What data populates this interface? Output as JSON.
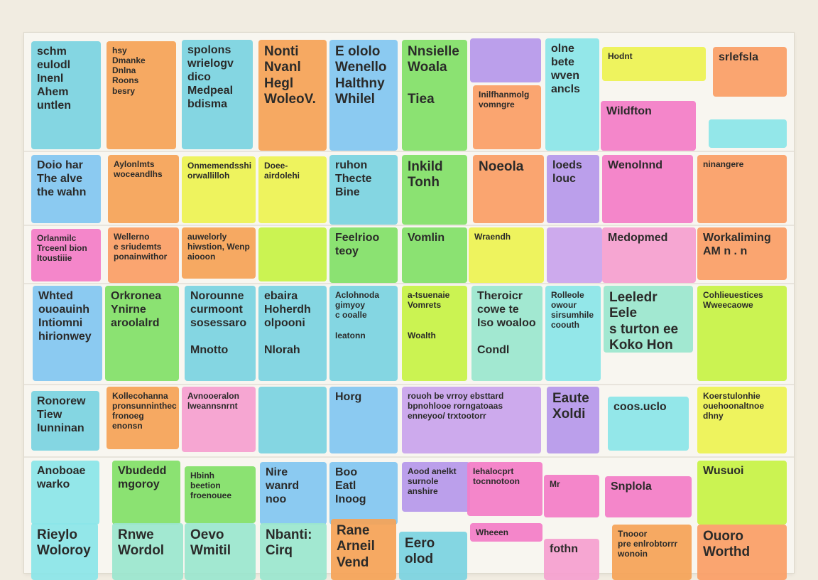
{
  "board": {
    "notes": [
      {
        "id": "r1c1",
        "text": "schm\neulodl\nInenl\nAhem\nuntlen",
        "color": "cyan",
        "size": "md"
      },
      {
        "id": "r1c2",
        "text": "hsy\nDmanke\nDnlna\nRoons\nbesry",
        "color": "orange",
        "size": "sm"
      },
      {
        "id": "r1c3",
        "text": "spolons\nwrielogv\ndico\nMedpeal\nbdisma",
        "color": "cyan",
        "size": "md"
      },
      {
        "id": "r1c4",
        "text": "Nonti\nNvanl\nHegl\nWoleoV.",
        "color": "orange",
        "size": "lg"
      },
      {
        "id": "r1c5",
        "text": "E ololo\nWenello\nHalthny\nWhilel",
        "color": "sky",
        "size": "lg"
      },
      {
        "id": "r1c6",
        "text": "Nnsielle\nWoala\n\nTiea",
        "color": "green",
        "size": "lg"
      },
      {
        "id": "r1c7a",
        "text": "",
        "color": "violet",
        "size": "sm"
      },
      {
        "id": "r1c7b",
        "text": "Inilfhanmolg\nvomngre",
        "color": "peach",
        "size": "sm"
      },
      {
        "id": "r1c8",
        "text": "olne\nbete\nwven\nancls",
        "color": "aqua",
        "size": "md"
      },
      {
        "id": "r1c9a",
        "text": "Hodnt",
        "color": "yellow",
        "size": "sm"
      },
      {
        "id": "r1c9b",
        "text": "Wildfton",
        "color": "pink",
        "size": "md"
      },
      {
        "id": "r1c10a",
        "text": "srlefsla",
        "color": "peach",
        "size": "md"
      },
      {
        "id": "r1c10b",
        "text": "",
        "color": "aqua",
        "size": "sm"
      },
      {
        "id": "r2c1",
        "text": "Doio har\nThe alve\nthe wahn",
        "color": "sky",
        "size": "md"
      },
      {
        "id": "r2c2",
        "text": "Aylonlmts\nwoceandlhs",
        "color": "orange",
        "size": "sm"
      },
      {
        "id": "r2c3",
        "text": "Onmemendsshi\norwallilloh",
        "color": "yellow",
        "size": "sm"
      },
      {
        "id": "r2c4",
        "text": "Doee-\nairdolehi",
        "color": "yellow",
        "size": "sm"
      },
      {
        "id": "r2c5",
        "text": "ruhon\nThecte\nBine",
        "color": "cyan",
        "size": "md"
      },
      {
        "id": "r2c6",
        "text": "Inkild\nTonh",
        "color": "green",
        "size": "lg"
      },
      {
        "id": "r2c7",
        "text": "Noeola",
        "color": "peach",
        "size": "lg"
      },
      {
        "id": "r2c8",
        "text": "loeds\nlouc",
        "color": "violet",
        "size": "md"
      },
      {
        "id": "r2c9",
        "text": "Wenolnnd",
        "color": "pink",
        "size": "md"
      },
      {
        "id": "r2c10",
        "text": "ninangere",
        "color": "peach",
        "size": "sm"
      },
      {
        "id": "r3c1",
        "text": "Orlanmilc\nTrceenl bion\nItoustiiie",
        "color": "pink",
        "size": "sm"
      },
      {
        "id": "r3c2",
        "text": "Wellerno\ne sriudemts\nponainwithor",
        "color": "peach",
        "size": "sm"
      },
      {
        "id": "r3c3",
        "text": "auwelorly\nhiwstion, Wenp\naiooon",
        "color": "orange",
        "size": "sm"
      },
      {
        "id": "r3c4",
        "text": "",
        "color": "lime",
        "size": "sm"
      },
      {
        "id": "r3c5",
        "text": "Feelrioo\nteoy",
        "color": "green",
        "size": "md"
      },
      {
        "id": "r3c6",
        "text": "Vomlin",
        "color": "green",
        "size": "md"
      },
      {
        "id": "r3c7",
        "text": "Wraendh",
        "color": "yellow",
        "size": "sm"
      },
      {
        "id": "r3c8",
        "text": "",
        "color": "lilac",
        "size": "sm"
      },
      {
        "id": "r3c9",
        "text": "Medopmed",
        "color": "rose",
        "size": "md"
      },
      {
        "id": "r3c10",
        "text": "Workaliming\nAM  n . n",
        "color": "peach",
        "size": "md"
      },
      {
        "id": "r4c1",
        "text": "Whted\nouoauinh\nIntiomni\nhirionwey",
        "color": "sky",
        "size": "md"
      },
      {
        "id": "r4c2",
        "text": "Orkronea\nYnirne\naroolalrd",
        "color": "green",
        "size": "md"
      },
      {
        "id": "r4c3",
        "text": "Norounne\ncurmoont\nsosessaro\n\nMnotto",
        "color": "cyan",
        "size": "md"
      },
      {
        "id": "r4c4",
        "text": "ebaira\nHoherdh\nolpooni\n\nNlorah",
        "color": "cyan",
        "size": "md"
      },
      {
        "id": "r4c5",
        "text": "Aclohnoda\ngimyoy\nc ooalle\n\nIeatonn",
        "color": "cyan",
        "size": "sm"
      },
      {
        "id": "r4c6",
        "text": "a-tsuenaie\nVomrets\n\n\nWoalth",
        "color": "lime",
        "size": "sm"
      },
      {
        "id": "r4c7",
        "text": "Theroicr\ncowe te\nIso woaloo\n\nCondl",
        "color": "mint",
        "size": "md"
      },
      {
        "id": "r4c8",
        "text": "Rolleole\nowour\nsirsumhile\ncoouth",
        "color": "aqua",
        "size": "sm"
      },
      {
        "id": "r4c9",
        "text": "Leeledr Eele\ns turton ee\nKoko Hon",
        "color": "mint",
        "size": "lg"
      },
      {
        "id": "r4c10",
        "text": "Cohlieuestices\nWweecaowe",
        "color": "lime",
        "size": "sm"
      },
      {
        "id": "r5c1",
        "text": "Ronorew\nTiew\nIunninan",
        "color": "cyan",
        "size": "md"
      },
      {
        "id": "r5c2",
        "text": "Kollecohanna\npronsunninthec\nfronoeg enonsn",
        "color": "orange",
        "size": "sm"
      },
      {
        "id": "r5c3",
        "text": "Avnooeralon\nlweannsnrnt",
        "color": "rose",
        "size": "sm"
      },
      {
        "id": "r5c4",
        "text": "",
        "color": "cyan",
        "size": "sm"
      },
      {
        "id": "r5c5",
        "text": "Horg",
        "color": "sky",
        "size": "md"
      },
      {
        "id": "r5c6",
        "text": "rouoh be vrroy ebsttard\nbpnohlooe rorngatoaas\nenneyoo/   trxtootorr",
        "color": "lilac",
        "size": "sm"
      },
      {
        "id": "r5c7",
        "text": "Eaute\nXoldi",
        "color": "violet",
        "size": "lg"
      },
      {
        "id": "r5c8",
        "text": "coos.uclo",
        "color": "aqua",
        "size": "md"
      },
      {
        "id": "r5c9",
        "text": "Koerstulonhie\nouehoonaltnoe\ndhny",
        "color": "yellow",
        "size": "sm"
      },
      {
        "id": "r6c1",
        "text": "Anoboae\nwarko",
        "color": "aqua",
        "size": "md"
      },
      {
        "id": "r6c2",
        "text": "Vbudedd\nmgoroy",
        "color": "green",
        "size": "md"
      },
      {
        "id": "r6c3",
        "text": "Hbinh\nbeetion\nfroenouee",
        "color": "green",
        "size": "sm"
      },
      {
        "id": "r6c4",
        "text": "Nire\nwanrd\nnoo",
        "color": "sky",
        "size": "md"
      },
      {
        "id": "r6c5",
        "text": "Boo\nEatl\nInoog",
        "color": "sky",
        "size": "md"
      },
      {
        "id": "r6c6",
        "text": "Aood anelkt\nsurnole\nanshire",
        "color": "violet",
        "size": "sm"
      },
      {
        "id": "r6c7",
        "text": "Iehalocprt\ntocnnotoon",
        "color": "pink",
        "size": "sm"
      },
      {
        "id": "r6c8",
        "text": "Mr",
        "color": "pink",
        "size": "sm"
      },
      {
        "id": "r6c9",
        "text": "Snplola",
        "color": "pink",
        "size": "md"
      },
      {
        "id": "r6c10",
        "text": "Wusuoi",
        "color": "lime",
        "size": "md"
      },
      {
        "id": "r7c1",
        "text": "Rieylo\nWoloroy",
        "color": "aqua",
        "size": "lg"
      },
      {
        "id": "r7c2",
        "text": "Rnwe\nWordol",
        "color": "mint",
        "size": "lg"
      },
      {
        "id": "r7c3",
        "text": "Oevo\nWmitil",
        "color": "mint",
        "size": "lg"
      },
      {
        "id": "r7c4",
        "text": "Nbanti:\nCirq",
        "color": "mint",
        "size": "lg"
      },
      {
        "id": "r7c5",
        "text": "Rane\nArneil\nVend",
        "color": "orange",
        "size": "lg"
      },
      {
        "id": "r7c6",
        "text": "Eero\nolod",
        "color": "cyan",
        "size": "lg"
      },
      {
        "id": "r7c7",
        "text": "Wheeen",
        "color": "pink",
        "size": "sm"
      },
      {
        "id": "r7c8",
        "text": "fothn",
        "color": "rose",
        "size": "md"
      },
      {
        "id": "r7c9",
        "text": "Tnooor\npre enlrobtorrr\nwonoin",
        "color": "orange",
        "size": "sm"
      },
      {
        "id": "r7c10",
        "text": "Ouoro\nWorthd",
        "color": "peach",
        "size": "lg"
      }
    ]
  }
}
